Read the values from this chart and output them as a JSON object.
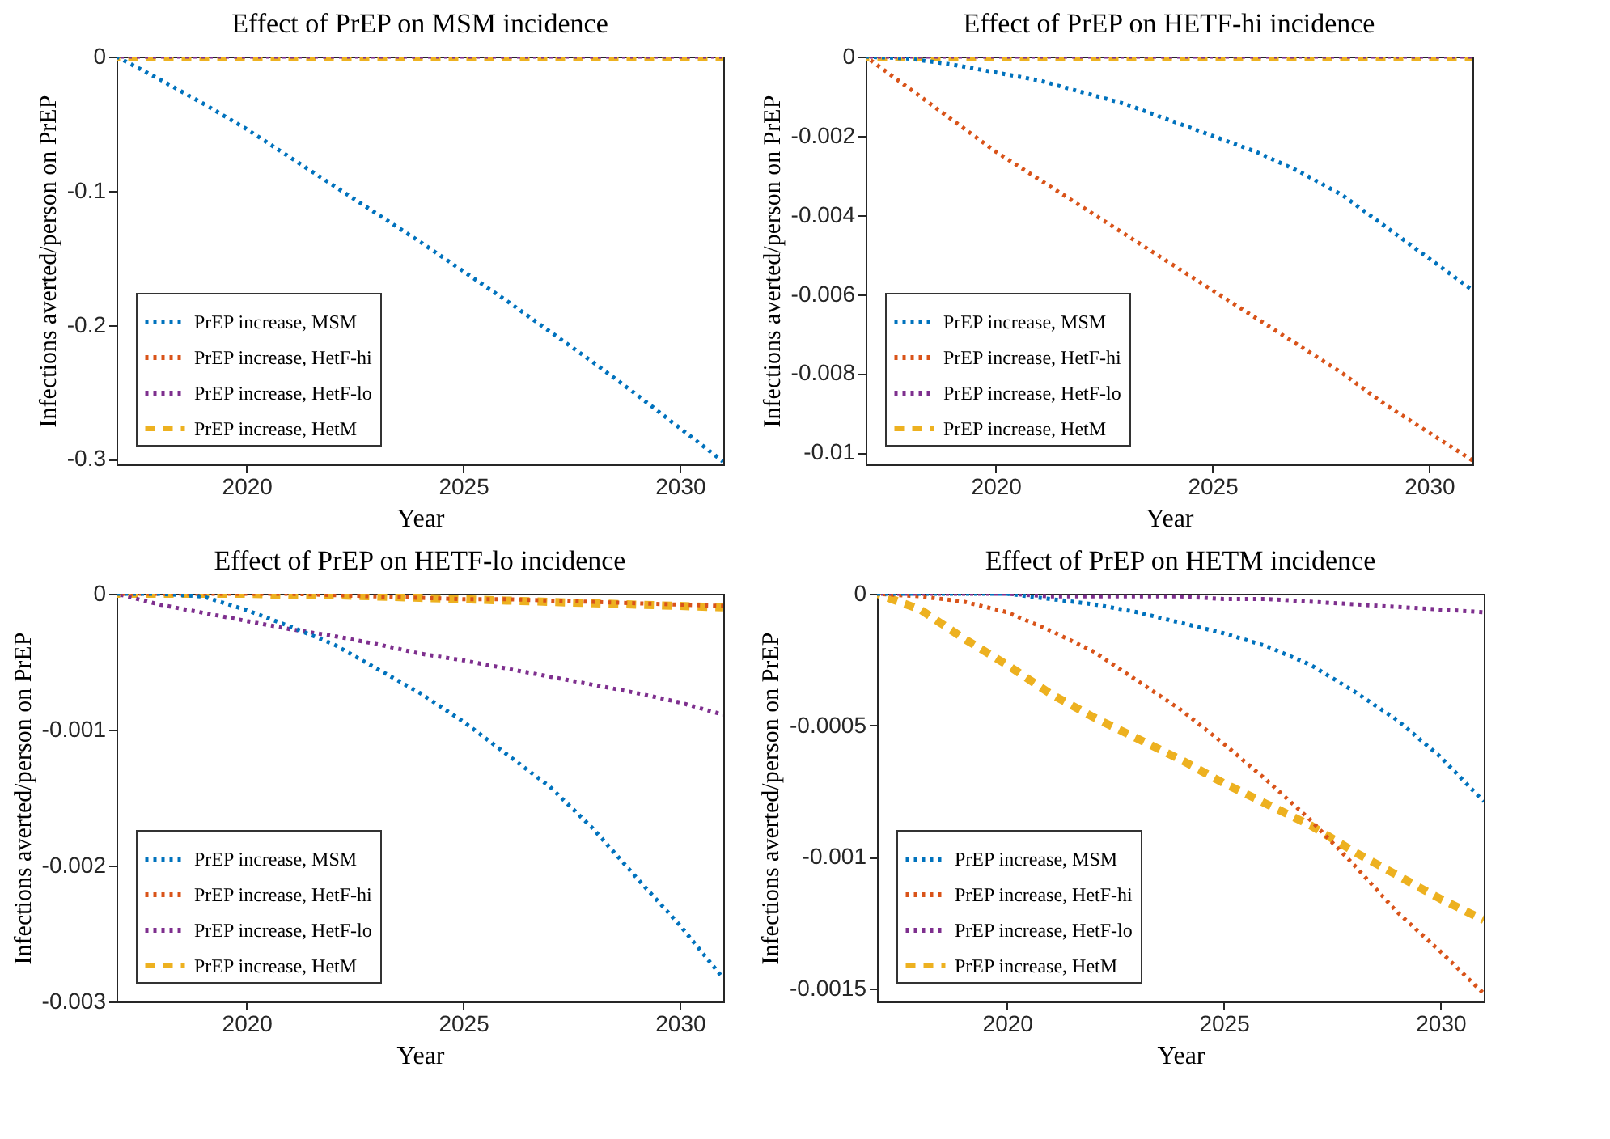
{
  "chart_data": [
    {
      "type": "line",
      "title": "Effect of PrEP on MSM incidence",
      "xlabel": "Year",
      "ylabel": "Infections averted/person on PrEP",
      "x": [
        2017,
        2018,
        2019,
        2020,
        2021,
        2022,
        2023,
        2024,
        2025,
        2026,
        2027,
        2028,
        2029,
        2030,
        2031
      ],
      "xlim": [
        2017,
        2031
      ],
      "xticks": [
        2020,
        2025,
        2030
      ],
      "ylim": [
        -0.304,
        0
      ],
      "yticks": [
        0,
        -0.1,
        -0.2,
        -0.3
      ],
      "grid": false,
      "legend": "bottom left",
      "marker": "none",
      "series": [
        {
          "name": "PrEP increase, MSM",
          "color": "#0072bd",
          "line_style": "dotted",
          "values": [
            0,
            -0.017,
            -0.035,
            -0.054,
            -0.075,
            -0.096,
            -0.117,
            -0.138,
            -0.16,
            -0.182,
            -0.205,
            -0.228,
            -0.252,
            -0.277,
            -0.302
          ]
        },
        {
          "name": "PrEP increase, HetF-hi",
          "color": "#d95319",
          "line_style": "dotted",
          "values": [
            null,
            null,
            null,
            null,
            null,
            null,
            null,
            null,
            null,
            null,
            null,
            null,
            null,
            null,
            null
          ]
        },
        {
          "name": "PrEP increase, HetF-lo",
          "color": "#7e2f8e",
          "line_style": "dotted",
          "values": [
            0,
            0,
            0,
            0,
            0,
            0,
            0,
            0,
            0,
            0,
            0,
            0,
            0,
            0,
            0
          ]
        },
        {
          "name": "PrEP increase, HetM",
          "color": "#edb120",
          "line_style": "dashed",
          "values": [
            0,
            0,
            0,
            0,
            0,
            0,
            0,
            0,
            0,
            0,
            0,
            0,
            0,
            0,
            0
          ]
        }
      ]
    },
    {
      "type": "line",
      "title": "Effect of PrEP on HETF-hi incidence",
      "xlabel": "Year",
      "ylabel": "Infections averted/person on PrEP",
      "x": [
        2017,
        2018,
        2019,
        2020,
        2021,
        2022,
        2023,
        2024,
        2025,
        2026,
        2027,
        2028,
        2029,
        2030,
        2031
      ],
      "xlim": [
        2017,
        2031
      ],
      "xticks": [
        2020,
        2025,
        2030
      ],
      "ylim": [
        -0.0103,
        0
      ],
      "yticks": [
        0,
        -0.002,
        -0.004,
        -0.006,
        -0.008,
        -0.01
      ],
      "grid": false,
      "legend": "bottom left",
      "marker": "none",
      "series": [
        {
          "name": "PrEP increase, MSM",
          "color": "#0072bd",
          "line_style": "dotted",
          "values": [
            0,
            -5e-05,
            -0.0002,
            -0.0004,
            -0.0006,
            -0.0009,
            -0.0012,
            -0.0016,
            -0.002,
            -0.0024,
            -0.0029,
            -0.0035,
            -0.0043,
            -0.0051,
            -0.0059
          ]
        },
        {
          "name": "PrEP increase, HetF-hi",
          "color": "#d95319",
          "line_style": "dotted",
          "values": [
            0,
            -0.0008,
            -0.0016,
            -0.0024,
            -0.0031,
            -0.0038,
            -0.0045,
            -0.0052,
            -0.0059,
            -0.0066,
            -0.0073,
            -0.008,
            -0.0088,
            -0.0095,
            -0.0102
          ]
        },
        {
          "name": "PrEP increase, HetF-lo",
          "color": "#7e2f8e",
          "line_style": "dotted",
          "values": [
            0,
            0,
            0,
            0,
            0,
            0,
            0,
            0,
            0,
            0,
            0,
            0,
            0,
            0,
            0
          ]
        },
        {
          "name": "PrEP increase, HetM",
          "color": "#edb120",
          "line_style": "dashed",
          "values": [
            0,
            0,
            0,
            0,
            0,
            0,
            0,
            0,
            0,
            0,
            0,
            0,
            0,
            0,
            0
          ]
        }
      ]
    },
    {
      "type": "line",
      "title": "Effect of PrEP on HETF-lo incidence",
      "xlabel": "Year",
      "ylabel": "Infections averted/person on PrEP",
      "x": [
        2017,
        2018,
        2019,
        2020,
        2021,
        2022,
        2023,
        2024,
        2025,
        2026,
        2027,
        2028,
        2029,
        2030,
        2031
      ],
      "xlim": [
        2017,
        2031
      ],
      "xticks": [
        2020,
        2025,
        2030
      ],
      "ylim": [
        -0.003,
        0
      ],
      "yticks": [
        0,
        -0.001,
        -0.002,
        -0.003
      ],
      "grid": false,
      "legend": "bottom left",
      "marker": "none",
      "series": [
        {
          "name": "PrEP increase, MSM",
          "color": "#0072bd",
          "line_style": "dotted",
          "values": [
            0,
            0,
            -2e-05,
            -0.00012,
            -0.00024,
            -0.00037,
            -0.00055,
            -0.00073,
            -0.00094,
            -0.00118,
            -0.00142,
            -0.00173,
            -0.00209,
            -0.00244,
            -0.00283
          ]
        },
        {
          "name": "PrEP increase, HetF-hi",
          "color": "#d95319",
          "line_style": "dotted",
          "values": [
            0,
            0,
            0,
            0,
            0,
            -1e-05,
            -2e-05,
            -3e-05,
            -4e-05,
            -4e-05,
            -5e-05,
            -6e-05,
            -7e-05,
            -8e-05,
            -9e-05
          ]
        },
        {
          "name": "PrEP increase, HetF-lo",
          "color": "#7e2f8e",
          "line_style": "dotted",
          "values": [
            0,
            -8e-05,
            -0.00014,
            -0.0002,
            -0.00026,
            -0.00031,
            -0.00037,
            -0.00044,
            -0.00049,
            -0.00055,
            -0.00061,
            -0.00067,
            -0.00073,
            -0.0008,
            -0.00089
          ]
        },
        {
          "name": "PrEP increase, HetM",
          "color": "#edb120",
          "line_style": "dashed",
          "values": [
            0,
            0,
            0,
            0,
            -1e-05,
            -1e-05,
            -2e-05,
            -3e-05,
            -4e-05,
            -5e-05,
            -6e-05,
            -7e-05,
            -8e-05,
            -9e-05,
            -0.0001
          ]
        }
      ]
    },
    {
      "type": "line",
      "title": "Effect of PrEP on HETM incidence",
      "xlabel": "Year",
      "ylabel": "Infections averted/person on PrEP",
      "x": [
        2017,
        2018,
        2019,
        2020,
        2021,
        2022,
        2023,
        2024,
        2025,
        2026,
        2027,
        2028,
        2029,
        2030,
        2031
      ],
      "xlim": [
        2017,
        2031
      ],
      "xticks": [
        2020,
        2025,
        2030
      ],
      "ylim": [
        -0.00155,
        0
      ],
      "yticks": [
        0,
        -0.0005,
        -0.001,
        -0.0015
      ],
      "grid": false,
      "legend": "bottom left",
      "marker": "none",
      "series": [
        {
          "name": "PrEP increase, MSM",
          "color": "#0072bd",
          "line_style": "dotted",
          "values": [
            0,
            0,
            0,
            0,
            -2e-05,
            -4e-05,
            -7e-05,
            -0.00011,
            -0.00015,
            -0.0002,
            -0.00027,
            -0.00037,
            -0.00048,
            -0.00062,
            -0.00079
          ]
        },
        {
          "name": "PrEP increase, HetF-hi",
          "color": "#d95319",
          "line_style": "dotted",
          "values": [
            0,
            -1e-05,
            -3e-05,
            -7e-05,
            -0.00014,
            -0.00022,
            -0.00033,
            -0.00044,
            -0.00057,
            -0.00071,
            -0.00086,
            -0.00103,
            -0.00121,
            -0.00136,
            -0.00152
          ]
        },
        {
          "name": "PrEP increase, HetF-lo",
          "color": "#7e2f8e",
          "line_style": "dotted",
          "values": [
            0,
            0,
            0,
            0,
            -1e-05,
            -1e-05,
            -1e-05,
            -1e-05,
            -2e-05,
            -2e-05,
            -3e-05,
            -4e-05,
            -5e-05,
            -6e-05,
            -7e-05
          ]
        },
        {
          "name": "PrEP increase, HetM",
          "color": "#edb120",
          "line_style": "dashed",
          "values": [
            0,
            -6e-05,
            -0.00017,
            -0.00027,
            -0.00038,
            -0.00047,
            -0.00055,
            -0.00063,
            -0.00072,
            -0.0008,
            -0.00088,
            -0.00098,
            -0.00107,
            -0.00116,
            -0.00124
          ]
        }
      ]
    }
  ]
}
